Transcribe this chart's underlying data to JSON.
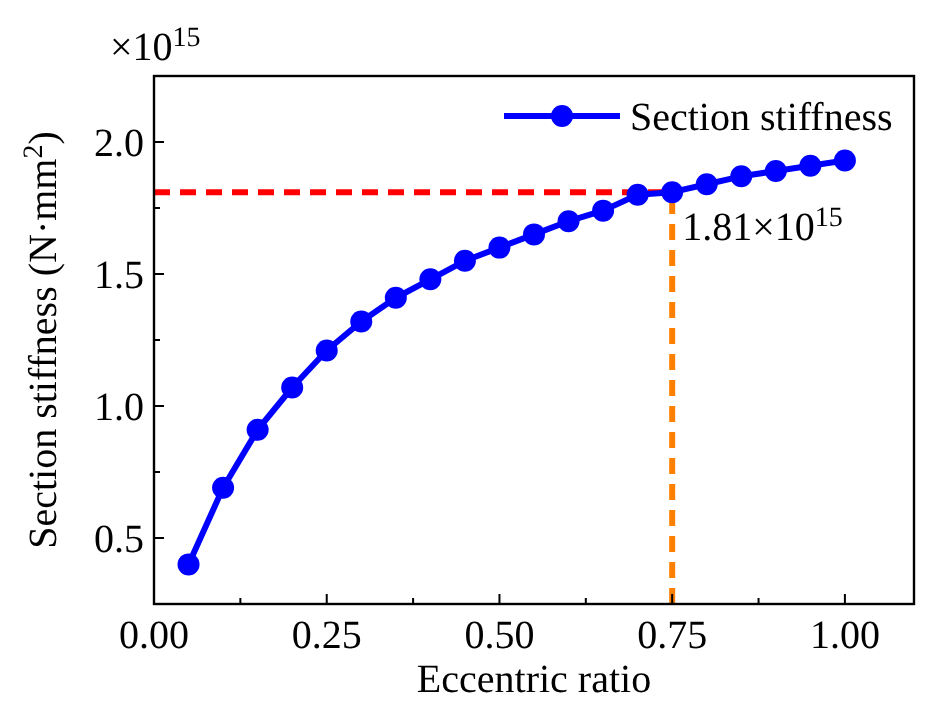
{
  "chart_data": {
    "type": "line",
    "xlabel": "Eccentric ratio",
    "ylabel": "Section stiffness (N·mm$^{2}$)",
    "x": [
      0.05,
      0.1,
      0.15,
      0.2,
      0.25,
      0.3,
      0.35,
      0.4,
      0.45,
      0.5,
      0.55,
      0.6,
      0.65,
      0.7,
      0.75,
      0.8,
      0.85,
      0.9,
      0.95,
      1.0
    ],
    "series": [
      {
        "name": "Section stiffness",
        "color": "#0000ff",
        "values": [
          0.4,
          0.69,
          0.91,
          1.07,
          1.21,
          1.32,
          1.41,
          1.48,
          1.55,
          1.6,
          1.65,
          1.7,
          1.74,
          1.8,
          1.81,
          1.84,
          1.87,
          1.89,
          1.91,
          1.93
        ]
      }
    ],
    "xlim": [
      0,
      1.1
    ],
    "xticks": [
      {
        "value": 0.125,
        "label": null
      },
      {
        "value": 0.25,
        "label": "0.25"
      },
      {
        "value": 0.375,
        "label": null
      },
      {
        "value": 0.5,
        "label": "0.50"
      },
      {
        "value": 0.625,
        "label": null
      },
      {
        "value": 0.75,
        "label": "0.75"
      },
      {
        "value": 0.875,
        "label": null
      },
      {
        "value": 1,
        "label": "1.00"
      },
      {
        "value": 0.0,
        "label": "0.00"
      }
    ],
    "ylim": [
      0.25,
      2.25
    ],
    "yticks": [
      {
        "value": 0.5,
        "label": "0.5"
      },
      {
        "value": 0.75,
        "label": null
      },
      {
        "value": 1,
        "label": "1.0"
      },
      {
        "value": 1.25,
        "label": null
      },
      {
        "value": 1.5,
        "label": "1.5"
      },
      {
        "value": 1.75,
        "label": null
      },
      {
        "value": 2,
        "label": "2.0"
      }
    ],
    "ref_lines": [
      {
        "axis": "y",
        "value": 1.81,
        "color": "#ff0000",
        "line_style": "dashed"
      },
      {
        "axis": "x",
        "value": 0.75,
        "color": "#ff8000",
        "line_style": "dashed"
      }
    ],
    "annotations": [
      "×10$^{15}$",
      {
        "text": "1.81×10$^{15}$",
        "x": 0.75,
        "y": 1.81
      }
    ],
    "marker": "circle",
    "line_style": "solid",
    "legend": "top right",
    "grid": false
  }
}
